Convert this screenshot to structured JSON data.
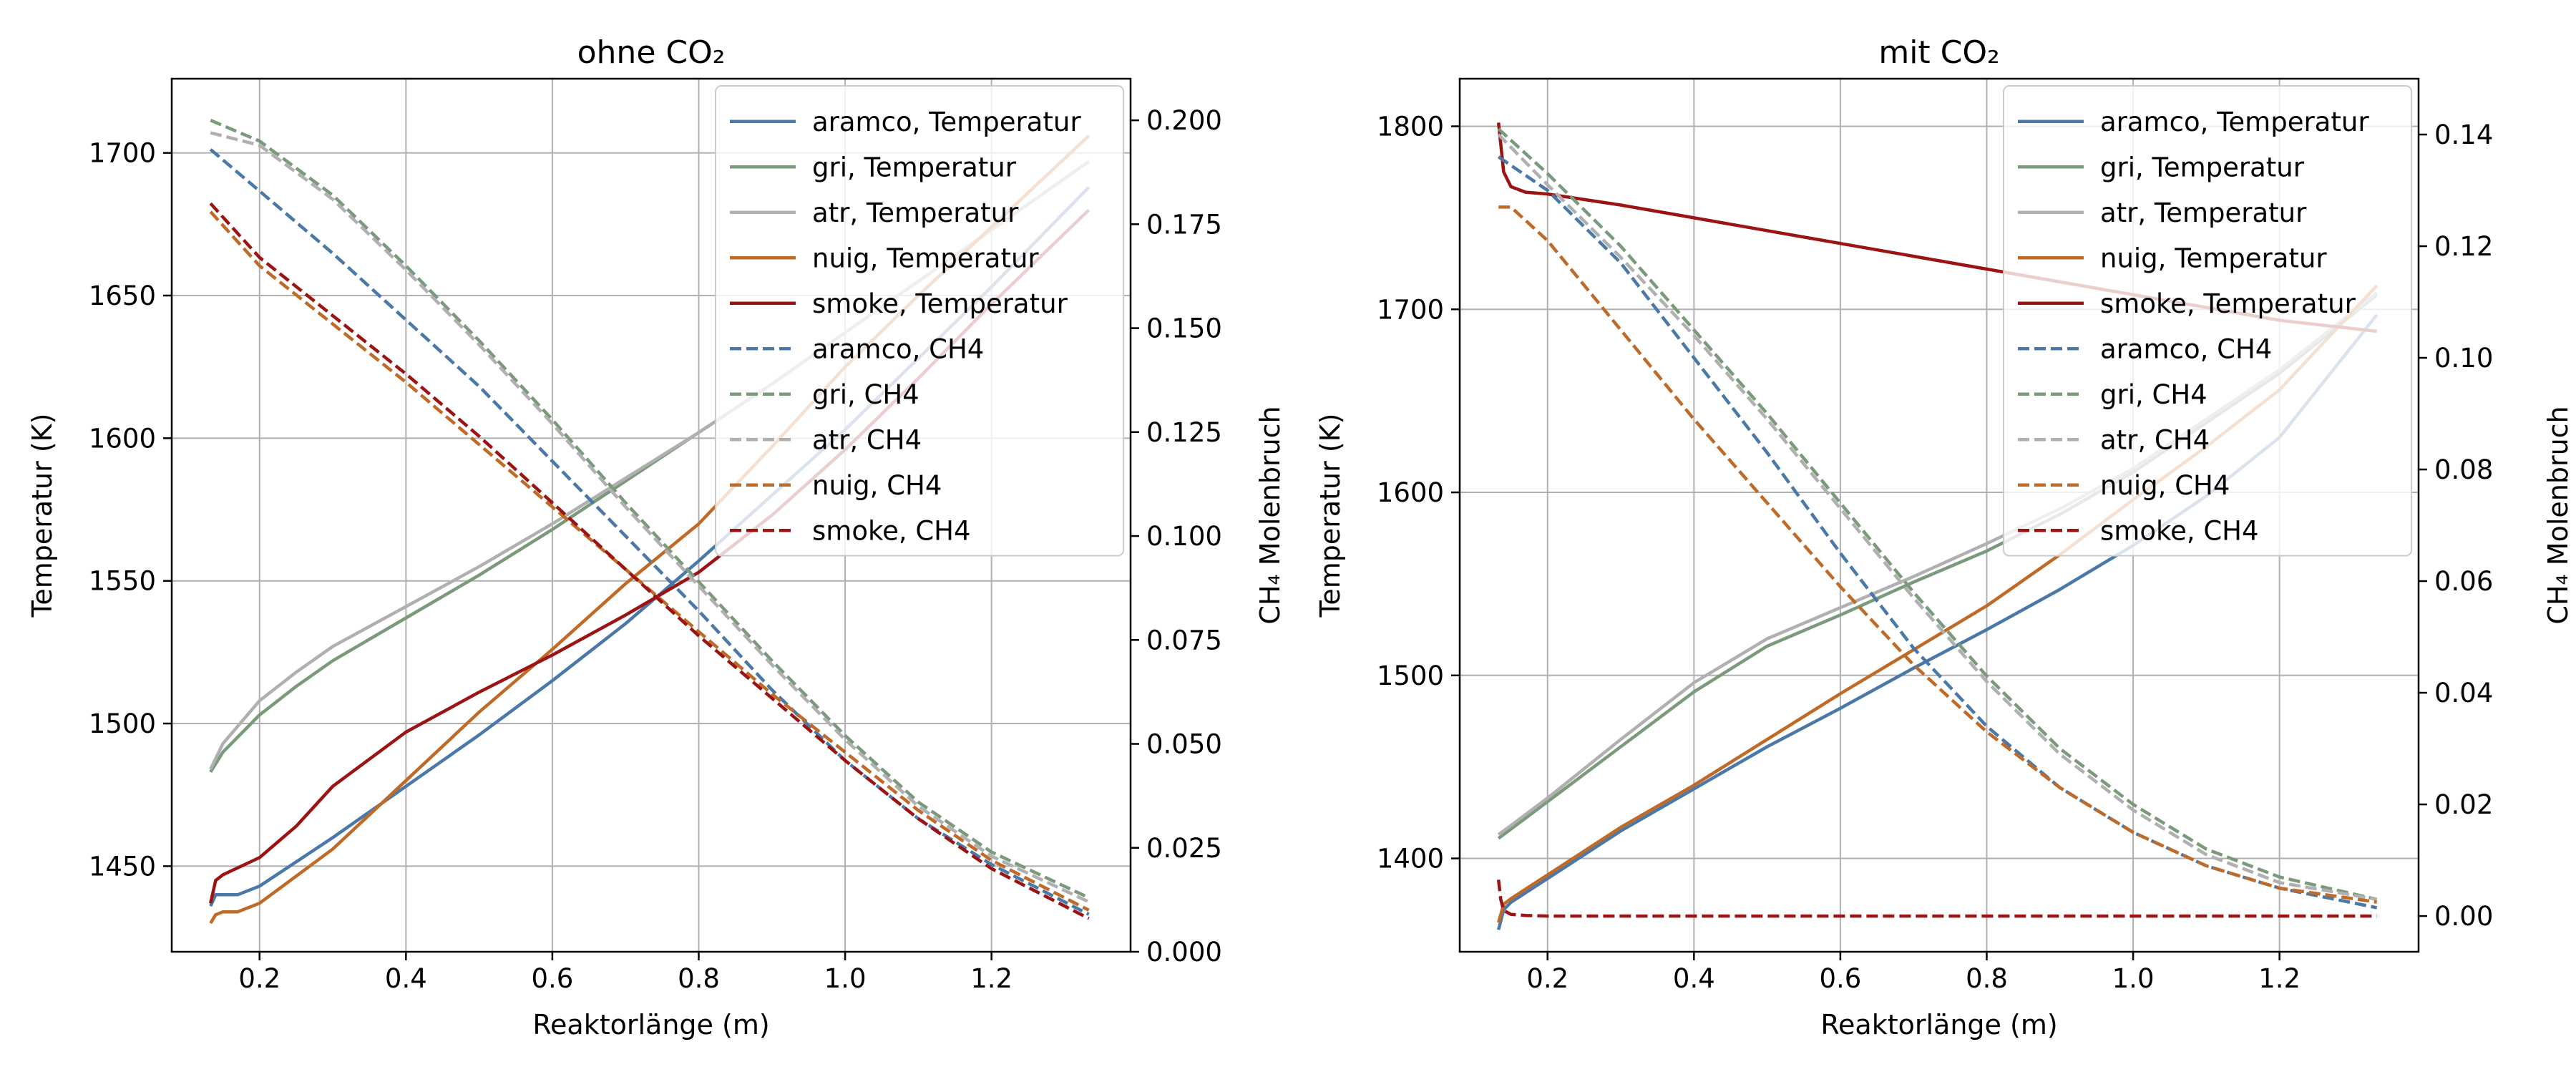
{
  "chart_data": [
    {
      "type": "line",
      "title": "ohne CO₂",
      "xlabel": "Reaktorlänge (m)",
      "ylabel": "Temperatur (K)",
      "y2label": "CH₄ Molenbruch",
      "xlim": [
        0.08,
        1.39
      ],
      "ylim": [
        1420,
        1726
      ],
      "y2lim": [
        0,
        0.21
      ],
      "xticks": [
        0.2,
        0.4,
        0.6,
        0.8,
        1.0,
        1.2
      ],
      "xtick_labels": [
        "0.2",
        "0.4",
        "0.6",
        "0.8",
        "1.0",
        "1.2"
      ],
      "yticks": [
        1450,
        1500,
        1550,
        1600,
        1650,
        1700
      ],
      "ytick_labels": [
        "1450",
        "1500",
        "1550",
        "1600",
        "1650",
        "1700"
      ],
      "y2ticks": [
        0,
        0.025,
        0.05,
        0.075,
        0.1,
        0.125,
        0.15,
        0.175,
        0.2
      ],
      "y2tick_labels": [
        "0.000",
        "0.025",
        "0.050",
        "0.075",
        "0.100",
        "0.125",
        "0.150",
        "0.175",
        "0.200"
      ],
      "grid": true,
      "legend_position": "top-right",
      "series": [
        {
          "name": "aramco, Temperatur",
          "axis": "left",
          "style": "solid",
          "color": "#4a78a8",
          "x": [
            0.133,
            0.14,
            0.15,
            0.17,
            0.2,
            0.3,
            0.4,
            0.5,
            0.6,
            0.7,
            0.8,
            0.9,
            1.0,
            1.1,
            1.2,
            1.333
          ],
          "y": [
            1436,
            1440,
            1440,
            1440,
            1443,
            1460,
            1478,
            1496,
            1515,
            1535,
            1557,
            1580,
            1603,
            1628,
            1653,
            1688
          ]
        },
        {
          "name": "gri, Temperatur",
          "axis": "left",
          "style": "solid",
          "color": "#7b9a7b",
          "x": [
            0.133,
            0.15,
            0.2,
            0.25,
            0.3,
            0.4,
            0.5,
            0.6,
            0.7,
            0.8,
            0.9,
            1.0,
            1.1,
            1.2,
            1.333
          ],
          "y": [
            1483,
            1490,
            1503,
            1513,
            1522,
            1537,
            1552,
            1568,
            1585,
            1602,
            1619,
            1637,
            1655,
            1673,
            1697
          ]
        },
        {
          "name": "atr, Temperatur",
          "axis": "left",
          "style": "solid",
          "color": "#b0b0b0",
          "x": [
            0.133,
            0.15,
            0.2,
            0.25,
            0.3,
            0.4,
            0.5,
            0.6,
            0.7,
            0.8,
            0.9,
            1.0,
            1.1,
            1.2,
            1.333
          ],
          "y": [
            1484,
            1493,
            1508,
            1518,
            1527,
            1541,
            1555,
            1570,
            1586,
            1602,
            1619,
            1637,
            1655,
            1673,
            1697
          ]
        },
        {
          "name": "nuig, Temperatur",
          "axis": "left",
          "style": "solid",
          "color": "#c06a28",
          "x": [
            0.133,
            0.14,
            0.15,
            0.17,
            0.2,
            0.3,
            0.4,
            0.5,
            0.6,
            0.7,
            0.8,
            0.9,
            1.0,
            1.1,
            1.2,
            1.333
          ],
          "y": [
            1430,
            1433,
            1434,
            1434,
            1437,
            1456,
            1480,
            1504,
            1526,
            1549,
            1570,
            1597,
            1625,
            1650,
            1674,
            1706
          ]
        },
        {
          "name": "smoke, Temperatur",
          "axis": "left",
          "style": "solid",
          "color": "#9b1313",
          "x": [
            0.133,
            0.14,
            0.15,
            0.2,
            0.25,
            0.3,
            0.4,
            0.5,
            0.6,
            0.7,
            0.8,
            0.9,
            1.0,
            1.1,
            1.2,
            1.333
          ],
          "y": [
            1437,
            1445,
            1447,
            1453,
            1464,
            1478,
            1497,
            1511,
            1524,
            1538,
            1553,
            1573,
            1596,
            1621,
            1647,
            1680
          ]
        },
        {
          "name": "aramco, CH4",
          "axis": "right",
          "style": "dashed",
          "color": "#4a78a8",
          "x": [
            0.133,
            0.2,
            0.3,
            0.4,
            0.5,
            0.6,
            0.7,
            0.8,
            0.9,
            1.0,
            1.1,
            1.2,
            1.333
          ],
          "y": [
            0.193,
            0.183,
            0.168,
            0.152,
            0.136,
            0.118,
            0.1,
            0.082,
            0.063,
            0.046,
            0.032,
            0.021,
            0.009
          ]
        },
        {
          "name": "gri, CH4",
          "axis": "right",
          "style": "dashed",
          "color": "#7b9a7b",
          "x": [
            0.133,
            0.2,
            0.3,
            0.4,
            0.5,
            0.6,
            0.7,
            0.8,
            0.9,
            1.0,
            1.1,
            1.2,
            1.333
          ],
          "y": [
            0.2,
            0.195,
            0.182,
            0.165,
            0.147,
            0.128,
            0.108,
            0.089,
            0.07,
            0.052,
            0.036,
            0.024,
            0.013
          ]
        },
        {
          "name": "atr, CH4",
          "axis": "right",
          "style": "dashed",
          "color": "#b0b0b0",
          "x": [
            0.133,
            0.2,
            0.3,
            0.4,
            0.5,
            0.6,
            0.7,
            0.8,
            0.9,
            1.0,
            1.1,
            1.2,
            1.333
          ],
          "y": [
            0.197,
            0.194,
            0.181,
            0.164,
            0.146,
            0.127,
            0.107,
            0.088,
            0.069,
            0.051,
            0.035,
            0.023,
            0.012
          ]
        },
        {
          "name": "nuig, CH4",
          "axis": "right",
          "style": "dashed",
          "color": "#c06a28",
          "x": [
            0.133,
            0.2,
            0.3,
            0.4,
            0.5,
            0.6,
            0.7,
            0.8,
            0.9,
            1.0,
            1.1,
            1.2,
            1.333
          ],
          "y": [
            0.178,
            0.165,
            0.151,
            0.137,
            0.122,
            0.107,
            0.092,
            0.077,
            0.062,
            0.048,
            0.034,
            0.022,
            0.01
          ]
        },
        {
          "name": "smoke, CH4",
          "axis": "right",
          "style": "dashed",
          "color": "#9b1313",
          "x": [
            0.133,
            0.2,
            0.3,
            0.4,
            0.5,
            0.6,
            0.7,
            0.8,
            0.9,
            1.0,
            1.1,
            1.2,
            1.333
          ],
          "y": [
            0.18,
            0.167,
            0.153,
            0.139,
            0.124,
            0.108,
            0.092,
            0.076,
            0.061,
            0.046,
            0.032,
            0.02,
            0.008
          ]
        }
      ]
    },
    {
      "type": "line",
      "title": "mit CO₂",
      "xlabel": "Reaktorlänge (m)",
      "ylabel": "Temperatur (K)",
      "y2label": "CH₄ Molenbruch",
      "xlim": [
        0.08,
        1.39
      ],
      "ylim": [
        1349,
        1826
      ],
      "y2lim": [
        -0.0064,
        0.15
      ],
      "xticks": [
        0.2,
        0.4,
        0.6,
        0.8,
        1.0,
        1.2
      ],
      "xtick_labels": [
        "0.2",
        "0.4",
        "0.6",
        "0.8",
        "1.0",
        "1.2"
      ],
      "yticks": [
        1400,
        1500,
        1600,
        1700,
        1800
      ],
      "ytick_labels": [
        "1400",
        "1500",
        "1600",
        "1700",
        "1800"
      ],
      "y2ticks": [
        0,
        0.02,
        0.04,
        0.06,
        0.08,
        0.1,
        0.12,
        0.14
      ],
      "y2tick_labels": [
        "0.00",
        "0.02",
        "0.04",
        "0.06",
        "0.08",
        "0.10",
        "0.12",
        "0.14"
      ],
      "grid": true,
      "legend_position": "top-right",
      "series": [
        {
          "name": "aramco, Temperatur",
          "axis": "left",
          "style": "solid",
          "color": "#4a78a8",
          "x": [
            0.133,
            0.14,
            0.15,
            0.2,
            0.3,
            0.4,
            0.5,
            0.6,
            0.7,
            0.8,
            0.9,
            1.0,
            1.1,
            1.2,
            1.333
          ],
          "y": [
            1361,
            1372,
            1376,
            1389,
            1415,
            1438,
            1461,
            1482,
            1504,
            1525,
            1547,
            1571,
            1598,
            1630,
            1697
          ]
        },
        {
          "name": "gri, Temperatur",
          "axis": "left",
          "style": "solid",
          "color": "#7b9a7b",
          "x": [
            0.133,
            0.15,
            0.2,
            0.3,
            0.4,
            0.5,
            0.6,
            0.7,
            0.8,
            0.9,
            1.0,
            1.1,
            1.2,
            1.333
          ],
          "y": [
            1411,
            1416,
            1431,
            1461,
            1491,
            1516,
            1533,
            1551,
            1568,
            1588,
            1611,
            1638,
            1665,
            1708
          ]
        },
        {
          "name": "atr, Temperatur",
          "axis": "left",
          "style": "solid",
          "color": "#b0b0b0",
          "x": [
            0.133,
            0.15,
            0.2,
            0.3,
            0.4,
            0.5,
            0.6,
            0.7,
            0.8,
            0.9,
            1.0,
            1.1,
            1.2,
            1.333
          ],
          "y": [
            1413,
            1418,
            1433,
            1465,
            1496,
            1520,
            1537,
            1554,
            1572,
            1591,
            1613,
            1640,
            1667,
            1709
          ]
        },
        {
          "name": "nuig, Temperatur",
          "axis": "left",
          "style": "solid",
          "color": "#c06a28",
          "x": [
            0.133,
            0.14,
            0.15,
            0.2,
            0.3,
            0.4,
            0.5,
            0.6,
            0.7,
            0.8,
            0.9,
            1.0,
            1.1,
            1.2,
            1.333
          ],
          "y": [
            1365,
            1375,
            1378,
            1391,
            1417,
            1440,
            1465,
            1490,
            1514,
            1538,
            1566,
            1596,
            1625,
            1656,
            1713
          ]
        },
        {
          "name": "smoke, Temperatur",
          "axis": "left",
          "style": "solid",
          "color": "#9b1313",
          "x": [
            0.133,
            0.14,
            0.15,
            0.17,
            0.2,
            0.3,
            0.4,
            0.5,
            0.6,
            0.7,
            0.8,
            0.9,
            1.0,
            1.1,
            1.2,
            1.333
          ],
          "y": [
            1802,
            1775,
            1767,
            1764,
            1763,
            1757,
            1750,
            1743,
            1736,
            1729,
            1722,
            1715,
            1708,
            1701,
            1694,
            1688
          ]
        },
        {
          "name": "aramco, CH4",
          "axis": "right",
          "style": "dashed",
          "color": "#4a78a8",
          "x": [
            0.133,
            0.2,
            0.3,
            0.4,
            0.5,
            0.6,
            0.7,
            0.8,
            0.9,
            1.0,
            1.1,
            1.2,
            1.333
          ],
          "y": [
            0.136,
            0.13,
            0.117,
            0.1,
            0.083,
            0.065,
            0.048,
            0.034,
            0.023,
            0.015,
            0.009,
            0.005,
            0.0015
          ]
        },
        {
          "name": "gri, CH4",
          "axis": "right",
          "style": "dashed",
          "color": "#7b9a7b",
          "x": [
            0.133,
            0.2,
            0.3,
            0.4,
            0.5,
            0.6,
            0.7,
            0.8,
            0.9,
            1.0,
            1.1,
            1.2,
            1.333
          ],
          "y": [
            0.141,
            0.133,
            0.12,
            0.105,
            0.09,
            0.074,
            0.058,
            0.043,
            0.03,
            0.02,
            0.012,
            0.007,
            0.003
          ]
        },
        {
          "name": "atr, CH4",
          "axis": "right",
          "style": "dashed",
          "color": "#b0b0b0",
          "x": [
            0.133,
            0.2,
            0.3,
            0.4,
            0.5,
            0.6,
            0.7,
            0.8,
            0.9,
            1.0,
            1.1,
            1.2,
            1.333
          ],
          "y": [
            0.14,
            0.131,
            0.118,
            0.104,
            0.089,
            0.073,
            0.057,
            0.042,
            0.029,
            0.019,
            0.011,
            0.006,
            0.003
          ]
        },
        {
          "name": "nuig, CH4",
          "axis": "right",
          "style": "dashed",
          "color": "#c06a28",
          "x": [
            0.133,
            0.15,
            0.2,
            0.3,
            0.4,
            0.5,
            0.6,
            0.7,
            0.8,
            0.9,
            1.0,
            1.1,
            1.2,
            1.333
          ],
          "y": [
            0.127,
            0.127,
            0.121,
            0.105,
            0.089,
            0.074,
            0.059,
            0.045,
            0.033,
            0.023,
            0.015,
            0.009,
            0.005,
            0.0025
          ]
        },
        {
          "name": "smoke, CH4",
          "axis": "right",
          "style": "dashed",
          "color": "#9b1313",
          "x": [
            0.133,
            0.136,
            0.14,
            0.15,
            0.17,
            0.2,
            0.4,
            0.6,
            0.8,
            1.0,
            1.2,
            1.333
          ],
          "y": [
            0.0065,
            0.003,
            0.001,
            0.0003,
            0.0001,
            0.0,
            0.0,
            0.0,
            0.0,
            0.0,
            0.0,
            0.0
          ]
        }
      ]
    }
  ]
}
